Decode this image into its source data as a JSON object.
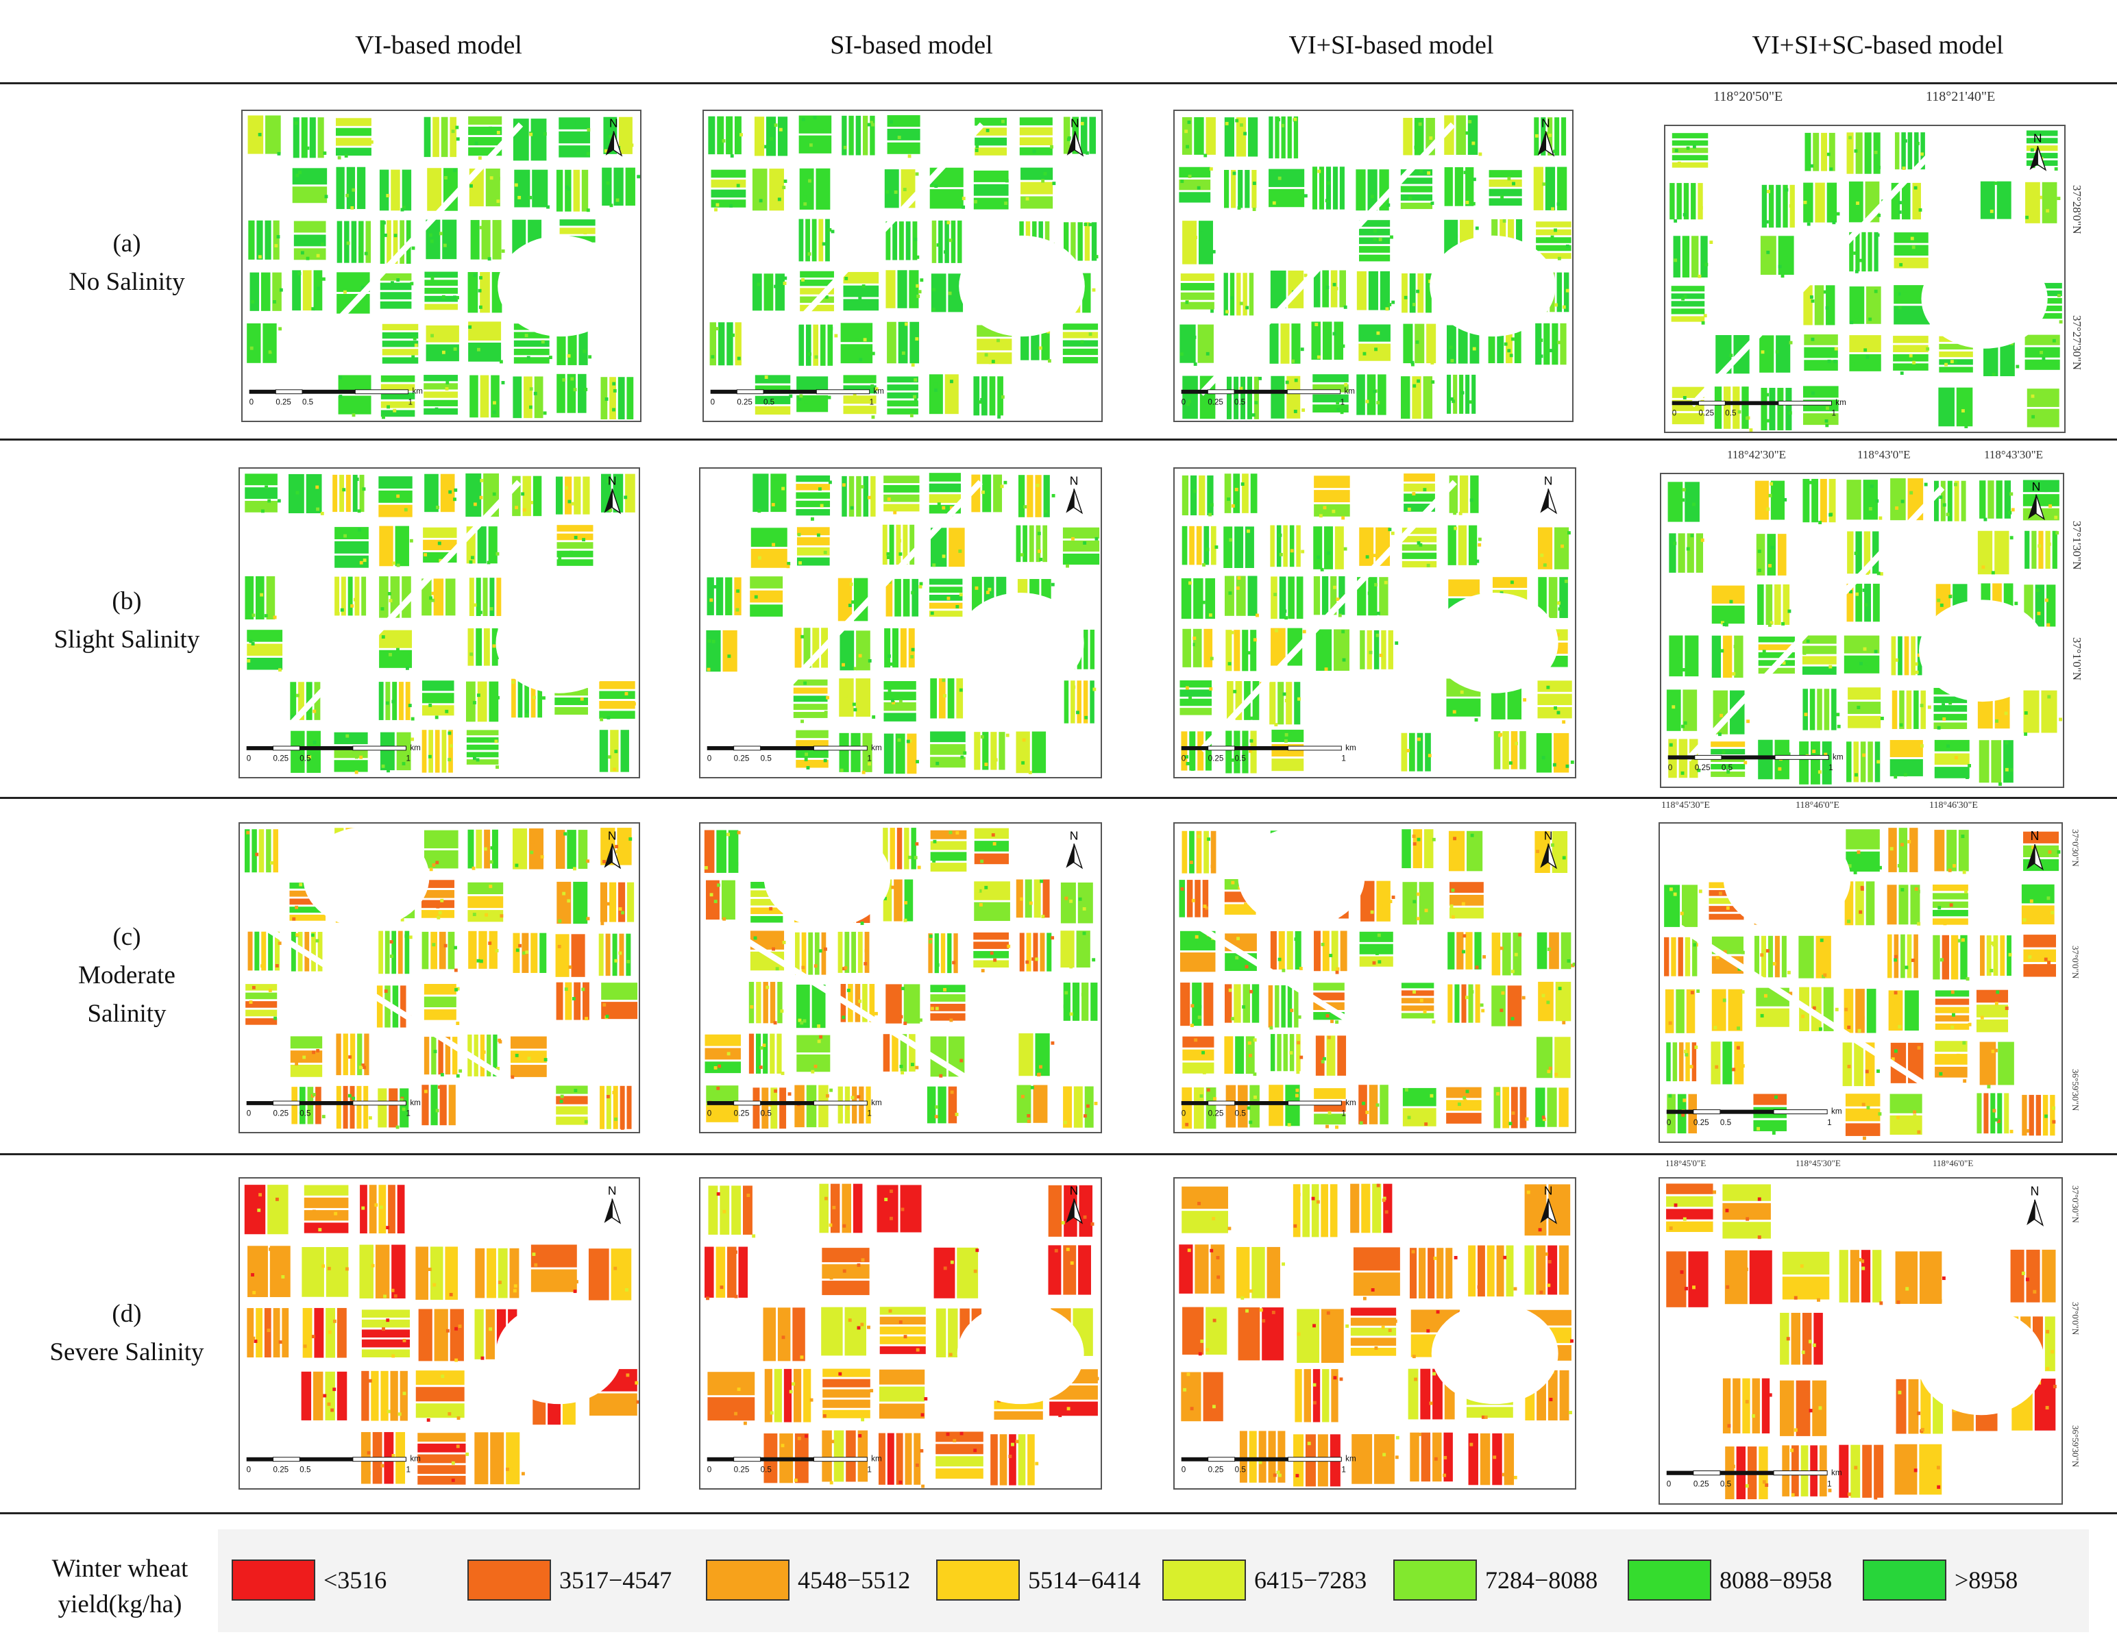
{
  "columns": [
    "VI-based model",
    "SI-based model",
    "VI+SI-based model",
    "VI+SI+SC-based model"
  ],
  "rows": [
    {
      "letter": "(a)",
      "label": "No Salinity"
    },
    {
      "letter": "(b)",
      "label": "Slight Salinity"
    },
    {
      "letter": "(c)",
      "label1": "Moderate",
      "label2": "Salinity"
    },
    {
      "letter": "(d)",
      "label": "Severe Salinity"
    }
  ],
  "map": {
    "north_label": "N",
    "scale_ticks": [
      "0",
      "0.25",
      "0.5",
      "1"
    ],
    "scale_unit": "km"
  },
  "coordinates": {
    "a": {
      "top": [
        "118°20'50\"E",
        "118°21'40\"E"
      ],
      "side": [
        "37°28'0\"N",
        "37°27'30\"N"
      ]
    },
    "b": {
      "top": [
        "118°42'30\"E",
        "118°43'0\"E",
        "118°43'30\"E"
      ],
      "side": [
        "37°1'30\"N",
        "37°1'0\"N"
      ]
    },
    "c": {
      "top": [
        "118°45'30\"E",
        "118°46'0\"E",
        "118°46'30\"E"
      ],
      "side": [
        "37°0'30\"N",
        "37°0'0\"N",
        "36°59'30\"N"
      ]
    },
    "d": {
      "top": [
        "118°45'0\"E",
        "118°45'30\"E",
        "118°46'0\"E"
      ],
      "side": [
        "37°0'30\"N",
        "37°0'0\"N",
        "36°59'30\"N"
      ]
    }
  },
  "legend": {
    "title1": "Winter wheat",
    "title2": "yield(kg/ha)",
    "items": [
      {
        "label": "<3516",
        "color": "#ee1c1c"
      },
      {
        "label": "3517−4547",
        "color": "#f26a1b"
      },
      {
        "label": "4548−5512",
        "color": "#f7a21b"
      },
      {
        "label": "5514−6414",
        "color": "#fcd21b"
      },
      {
        "label": "6415−7283",
        "color": "#d9ef2c"
      },
      {
        "label": "7284−8088",
        "color": "#82e82e"
      },
      {
        "label": "8088−8958",
        "color": "#35dc2e"
      },
      {
        "label": ">8958",
        "color": "#28d53a"
      }
    ]
  },
  "panel_palettes": {
    "a": [
      "#28d53a",
      "#35dc2e",
      "#82e82e",
      "#28d53a",
      "#d9ef2c",
      "#35dc2e"
    ],
    "b": [
      "#28d53a",
      "#35dc2e",
      "#82e82e",
      "#d9ef2c",
      "#fcd21b",
      "#35dc2e"
    ],
    "c": [
      "#82e82e",
      "#d9ef2c",
      "#fcd21b",
      "#f7a21b",
      "#f26a1b",
      "#35dc2e"
    ],
    "d": [
      "#f7a21b",
      "#f26a1b",
      "#fcd21b",
      "#f7a21b",
      "#d9ef2c",
      "#ee1c1c"
    ]
  }
}
